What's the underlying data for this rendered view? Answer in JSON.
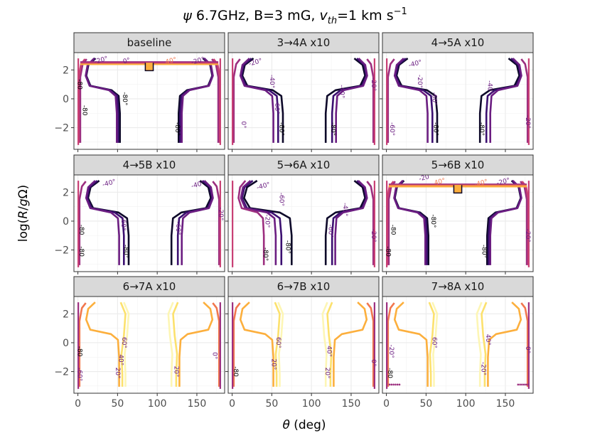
{
  "chart_data": {
    "type": "contour",
    "title_parts": [
      "ψ",
      " 6.7GHz, B=3 mG, ",
      "v",
      "th",
      "=1 km s",
      "−1"
    ],
    "xlabel_parts": [
      "θ",
      " (deg)"
    ],
    "ylabel_parts": [
      "log(",
      "R",
      "/",
      "g",
      "Ω)"
    ],
    "xlim": [
      -5,
      185
    ],
    "ylim": [
      -3.5,
      3.2
    ],
    "x_ticks": [
      0,
      50,
      100,
      150
    ],
    "y_ticks": [
      2,
      0,
      -2
    ],
    "y_tick_labels": [
      "2",
      "0",
      "−2"
    ],
    "grid": true,
    "contour_angles": [
      -80,
      -60,
      -40,
      -20,
      0,
      20,
      40
    ],
    "contour_colors": {
      "-80": "#0d0829",
      "-60": "#3b0f70",
      "-40": "#6b1d81",
      "-20": "#9c2e7f",
      "0": "#c83e73",
      "20": "#f1774e",
      "40": "#fcaf3d",
      "60": "#fce16d",
      "80": "#fdf6b5"
    },
    "panels": [
      {
        "label": "baseline",
        "family": "full",
        "contours": [
          {
            "angle": -80,
            "x_low": 53,
            "x_high": 127
          },
          {
            "angle": -60,
            "x_low": 51,
            "x_high": 129
          },
          {
            "angle": -40,
            "x_low": 49,
            "x_high": 131
          },
          {
            "angle": -20,
            "x_low": 3,
            "x_high": 177
          },
          {
            "angle": 0,
            "x_low": 1,
            "x_high": 179
          }
        ],
        "cap_angles": [
          -20,
          0,
          40
        ],
        "labels": [
          {
            "text": "-20°",
            "x": 30,
            "y": 2.55
          },
          {
            "text": "0°",
            "x": 62,
            "y": 2.5
          },
          {
            "text": "40°",
            "x": 118,
            "y": 2.5
          },
          {
            "text": "-20°",
            "x": 152,
            "y": 2.5
          },
          {
            "text": "-80",
            "x": 0,
            "y": 1.0
          },
          {
            "text": "-80",
            "x": 6,
            "y": -0.8
          },
          {
            "text": "-80°",
            "x": 57,
            "y": 0.0
          },
          {
            "text": "-80°",
            "x": 123,
            "y": -2.1
          }
        ]
      },
      {
        "label": "3→4A x10",
        "family": "open",
        "contours": [
          {
            "angle": -80,
            "x_low": 64,
            "x_high": 118
          },
          {
            "angle": -60,
            "x_low": 58,
            "x_high": 126
          },
          {
            "angle": -40,
            "x_low": 52,
            "x_high": 131
          },
          {
            "angle": -20,
            "x_low": 2,
            "x_high": 178
          }
        ],
        "labels": [
          {
            "text": "-20°",
            "x": 30,
            "y": 2.4
          },
          {
            "text": "-40°",
            "x": 48,
            "y": 1.2
          },
          {
            "text": "-40°",
            "x": 136,
            "y": 0.5
          },
          {
            "text": "-20°",
            "x": 176,
            "y": 1.0
          },
          {
            "text": "0°",
            "x": 12,
            "y": -1.8
          },
          {
            "text": "-60°",
            "x": 54,
            "y": -0.6
          },
          {
            "text": "-80°",
            "x": 60,
            "y": -2.1
          },
          {
            "text": "-80°",
            "x": 125,
            "y": -2.1
          }
        ]
      },
      {
        "label": "4→5A x10",
        "family": "open",
        "contours": [
          {
            "angle": -80,
            "x_low": 64,
            "x_high": 118
          },
          {
            "angle": -60,
            "x_low": 58,
            "x_high": 126
          },
          {
            "angle": -40,
            "x_low": 52,
            "x_high": 131
          },
          {
            "angle": -20,
            "x_low": 2,
            "x_high": 178
          }
        ],
        "labels": [
          {
            "text": "-40°",
            "x": 37,
            "y": 2.3
          },
          {
            "text": "-20°",
            "x": 40,
            "y": 1.2
          },
          {
            "text": "-60°",
            "x": 58,
            "y": 0.0
          },
          {
            "text": "-40°",
            "x": 128,
            "y": 0.8
          },
          {
            "text": "-20°",
            "x": 176,
            "y": -1.6
          },
          {
            "text": "-60°",
            "x": 5,
            "y": -2.1
          },
          {
            "text": "-80°",
            "x": 60,
            "y": -2.1
          },
          {
            "text": "-80°",
            "x": 118,
            "y": -2.1
          }
        ]
      },
      {
        "label": "4→5B x10",
        "family": "open",
        "contours": [
          {
            "angle": -80,
            "x_low": 64,
            "x_high": 118
          },
          {
            "angle": -60,
            "x_low": 58,
            "x_high": 126
          },
          {
            "angle": -40,
            "x_low": 52,
            "x_high": 131
          },
          {
            "angle": -20,
            "x_low": 2,
            "x_high": 178
          }
        ],
        "labels": [
          {
            "text": "-40°",
            "x": 40,
            "y": 2.5
          },
          {
            "text": "-60°",
            "x": 55,
            "y": -0.2
          },
          {
            "text": "-80°",
            "x": 58,
            "y": -2.1
          },
          {
            "text": "-40°",
            "x": 152,
            "y": 2.4
          },
          {
            "text": "-20°",
            "x": 178,
            "y": 0.5
          },
          {
            "text": "-60°",
            "x": 124,
            "y": -0.5
          },
          {
            "text": "-80",
            "x": 2,
            "y": -0.6
          },
          {
            "text": "-80",
            "x": 2,
            "y": -2.1
          }
        ]
      },
      {
        "label": "5→6A x10",
        "family": "single",
        "contours": [
          {
            "angle": -80,
            "x_low": 75,
            "x_high": 118
          },
          {
            "angle": -60,
            "x_low": 62,
            "x_high": 126
          },
          {
            "angle": -40,
            "x_low": 55,
            "x_high": 130
          },
          {
            "angle": -20,
            "x_low": 40,
            "x_high": 178
          }
        ],
        "labels": [
          {
            "text": "-40°",
            "x": 40,
            "y": 2.3
          },
          {
            "text": "-20°",
            "x": 42,
            "y": 0.0
          },
          {
            "text": "-60°",
            "x": 60,
            "y": 1.5
          },
          {
            "text": "-80°",
            "x": 40,
            "y": -2.3
          },
          {
            "text": "-80°",
            "x": 68,
            "y": -1.8
          },
          {
            "text": "-60°",
            "x": 122,
            "y": -0.7
          },
          {
            "text": "-40°",
            "x": 140,
            "y": 0.8
          },
          {
            "text": "-20°",
            "x": 176,
            "y": -1.0
          }
        ]
      },
      {
        "label": "5→6B x10",
        "family": "full",
        "contours": [
          {
            "angle": -80,
            "x_low": 53,
            "x_high": 127
          },
          {
            "angle": -60,
            "x_low": 51,
            "x_high": 129
          },
          {
            "angle": -40,
            "x_low": 49,
            "x_high": 131
          },
          {
            "angle": -20,
            "x_low": 3,
            "x_high": 177
          },
          {
            "angle": 0,
            "x_low": 1,
            "x_high": 179
          }
        ],
        "cap_angles": [
          -20,
          20,
          40
        ],
        "labels": [
          {
            "text": "-20°",
            "x": 50,
            "y": 2.9
          },
          {
            "text": "40°",
            "x": 68,
            "y": 2.6
          },
          {
            "text": "-40°",
            "x": 120,
            "y": 2.5
          },
          {
            "text": "-20°",
            "x": 148,
            "y": 2.6
          },
          {
            "text": "-80",
            "x": 6,
            "y": -0.6
          },
          {
            "text": "-80",
            "x": 0,
            "y": -2.1
          },
          {
            "text": "-80°",
            "x": 57,
            "y": 0.0
          },
          {
            "text": "-80°",
            "x": 121,
            "y": -2.1
          },
          {
            "text": "-20°",
            "x": 176,
            "y": -1.0
          }
        ]
      },
      {
        "label": "6→7A x10",
        "family": "warm",
        "contours": [
          {
            "angle": 80,
            "x_low": 60,
            "x_high": 118
          },
          {
            "angle": 60,
            "x_low": 56,
            "x_high": 124
          },
          {
            "angle": 40,
            "x_low": 52,
            "x_high": 128
          },
          {
            "angle": 20,
            "x_low": 2,
            "x_high": 178
          }
        ],
        "labels": [
          {
            "text": "60°",
            "x": 56,
            "y": 0.0
          },
          {
            "text": "40°",
            "x": 52,
            "y": -1.2
          },
          {
            "text": "20°",
            "x": 48,
            "y": -2.1
          },
          {
            "text": "20°",
            "x": 122,
            "y": -2.0
          },
          {
            "text": "0°",
            "x": 170,
            "y": -0.9
          },
          {
            "text": "-80",
            "x": 0,
            "y": -0.6
          },
          {
            "text": "-60°",
            "x": 0,
            "y": -2.2
          }
        ]
      },
      {
        "label": "6→7B x10",
        "family": "warm",
        "contours": [
          {
            "angle": 80,
            "x_low": 60,
            "x_high": 118
          },
          {
            "angle": 60,
            "x_low": 56,
            "x_high": 124
          },
          {
            "angle": 40,
            "x_low": 52,
            "x_high": 128
          },
          {
            "angle": 20,
            "x_low": 2,
            "x_high": 178
          }
        ],
        "labels": [
          {
            "text": "60°",
            "x": 56,
            "y": 0.0
          },
          {
            "text": "20°",
            "x": 50,
            "y": -1.5
          },
          {
            "text": "40°",
            "x": 120,
            "y": -0.6
          },
          {
            "text": "20°",
            "x": 118,
            "y": -2.1
          },
          {
            "text": "0°",
            "x": 176,
            "y": -1.4
          },
          {
            "text": "-80",
            "x": 2,
            "y": -2.0
          }
        ]
      },
      {
        "label": "7→8A x10",
        "family": "warm",
        "contours": [
          {
            "angle": 80,
            "x_low": 60,
            "x_high": 118
          },
          {
            "angle": 60,
            "x_low": 56,
            "x_high": 124
          },
          {
            "angle": 40,
            "x_low": 52,
            "x_high": 128
          },
          {
            "angle": 20,
            "x_low": 2,
            "x_high": 178
          }
        ],
        "dots": true,
        "labels": [
          {
            "text": "60°",
            "x": 58,
            "y": 0.0
          },
          {
            "text": "40°",
            "x": 126,
            "y": 0.2
          },
          {
            "text": "-20°",
            "x": 120,
            "y": -1.8
          },
          {
            "text": "0°",
            "x": 176,
            "y": -0.5
          },
          {
            "text": "-80",
            "x": 2,
            "y": -2.1
          },
          {
            "text": "-20°",
            "x": 4,
            "y": -0.6
          }
        ]
      }
    ]
  }
}
